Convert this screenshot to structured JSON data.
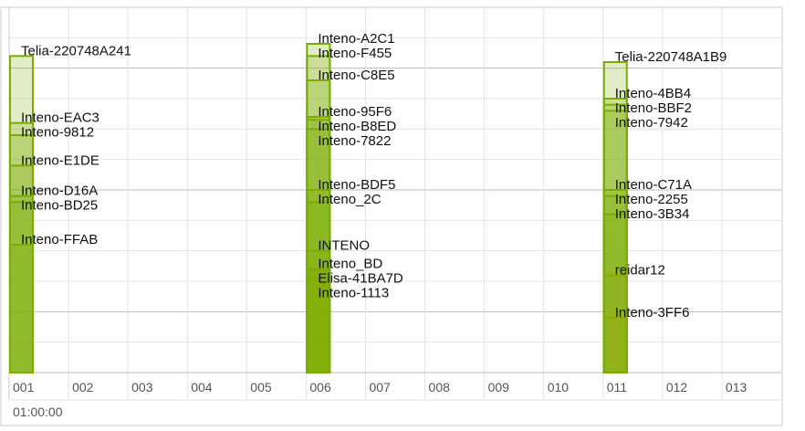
{
  "chart_data": {
    "type": "bar",
    "ylim": [
      -100,
      -40
    ],
    "grid": true,
    "time_label": "01:00:00",
    "categories": [
      "001",
      "002",
      "003",
      "004",
      "005",
      "006",
      "007",
      "008",
      "009",
      "010",
      "011",
      "012",
      "013"
    ],
    "colors": {
      "green": "#7aad00",
      "orange": "#ff8a00"
    },
    "networks": [
      {
        "name": "Telia-220748A241",
        "channel": "001",
        "signal": -48,
        "color": "green"
      },
      {
        "name": "Inteno-EAC3",
        "channel": "001",
        "signal": -59,
        "color": "green"
      },
      {
        "name": "Inteno-9812",
        "channel": "001",
        "signal": -61,
        "color": "green"
      },
      {
        "name": "Inteno-E1DE",
        "channel": "001",
        "signal": -66,
        "color": "green"
      },
      {
        "name": "Inteno-D16A",
        "channel": "001",
        "signal": -71,
        "color": "green"
      },
      {
        "name": "Inteno-BD25",
        "channel": "001",
        "signal": -72,
        "color": "green"
      },
      {
        "name": "Inteno-FFAB",
        "channel": "001",
        "signal": -79,
        "color": "green"
      },
      {
        "name": "Inteno-A2C1",
        "channel": "006",
        "signal": -46,
        "color": "green"
      },
      {
        "name": "Inteno-F455",
        "channel": "006",
        "signal": -48,
        "color": "green"
      },
      {
        "name": "Inteno-C8E5",
        "channel": "006",
        "signal": -52,
        "color": "green"
      },
      {
        "name": "Inteno-95F6",
        "channel": "006",
        "signal": -58,
        "color": "green"
      },
      {
        "name": "Inteno-B8ED",
        "channel": "006",
        "signal": -58.5,
        "color": "green"
      },
      {
        "name": "Inteno-7822",
        "channel": "006",
        "signal": -60,
        "color": "green"
      },
      {
        "name": "Inteno-BDF5",
        "channel": "006",
        "signal": -70,
        "color": "green"
      },
      {
        "name": "Inteno_2C",
        "channel": "006",
        "signal": -72,
        "color": "green"
      },
      {
        "name": "INTENO",
        "channel": "006",
        "signal": -80,
        "color": "green"
      },
      {
        "name": "Inteno_BD",
        "channel": "006",
        "signal": -83,
        "color": "green"
      },
      {
        "name": "Elisa-41BA7D",
        "channel": "006",
        "signal": -83.2,
        "color": "orange"
      },
      {
        "name": "Inteno-1113",
        "channel": "006",
        "signal": -84.5,
        "color": "orange"
      },
      {
        "name": "Telia-220748A1B9",
        "channel": "011",
        "signal": -49,
        "color": "green"
      },
      {
        "name": "Inteno-4BB4",
        "channel": "011",
        "signal": -55,
        "color": "green"
      },
      {
        "name": "Inteno-BBF2",
        "channel": "011",
        "signal": -56,
        "color": "green"
      },
      {
        "name": "Inteno-7942",
        "channel": "011",
        "signal": -57,
        "color": "green"
      },
      {
        "name": "Inteno-C71A",
        "channel": "011",
        "signal": -70,
        "color": "green"
      },
      {
        "name": "Inteno-2255",
        "channel": "011",
        "signal": -71,
        "color": "green"
      },
      {
        "name": "Inteno-3B34",
        "channel": "011",
        "signal": -74,
        "color": "green"
      },
      {
        "name": "reidar12",
        "channel": "011",
        "signal": -84,
        "color": "orange"
      },
      {
        "name": "Inteno-3FF6",
        "channel": "011",
        "signal": -91,
        "color": "orange"
      }
    ]
  }
}
